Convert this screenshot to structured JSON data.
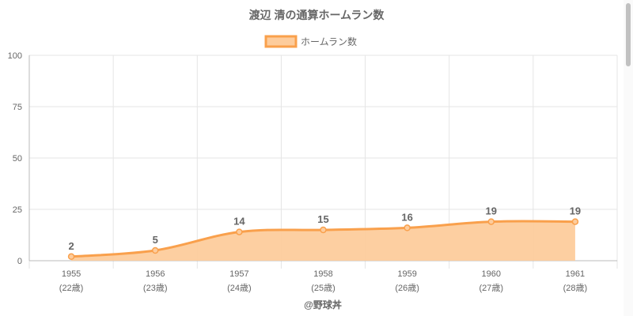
{
  "chart_data": {
    "type": "area",
    "title": "渡辺 清の通算ホームラン数",
    "legend": {
      "position": "top",
      "entries": [
        "ホームラン数"
      ]
    },
    "categories": [
      "1955",
      "1956",
      "1957",
      "1958",
      "1959",
      "1960",
      "1961"
    ],
    "sub_labels": [
      "(22歳)",
      "(23歳)",
      "(24歳)",
      "(25歳)",
      "(26歳)",
      "(27歳)",
      "(28歳)"
    ],
    "series": [
      {
        "name": "ホームラン数",
        "values": [
          2,
          5,
          14,
          15,
          16,
          19,
          19
        ]
      }
    ],
    "ylim": [
      0,
      100
    ],
    "yticks": [
      0,
      25,
      50,
      75,
      100
    ],
    "grid": true,
    "colors": {
      "line": "#f9a04c",
      "fill": "#fdcc9c",
      "grid": "#e5e5e5",
      "axis": "#bbbbbb"
    }
  },
  "credit": "@野球丼"
}
